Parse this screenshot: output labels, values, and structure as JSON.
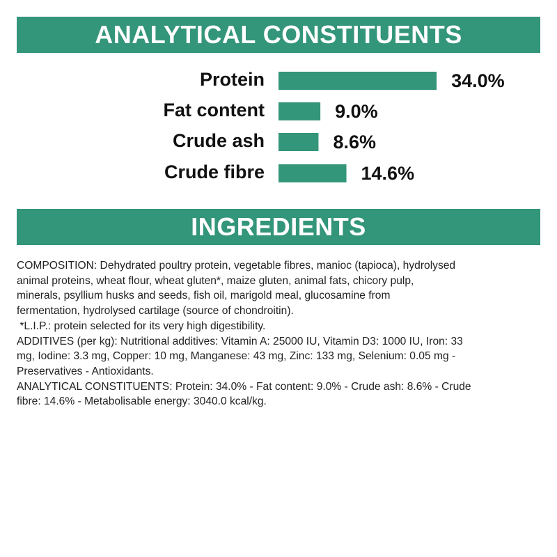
{
  "headers": {
    "constituents": "ANALYTICAL CONSTITUENTS",
    "ingredients": "INGREDIENTS"
  },
  "chart_data": {
    "type": "bar",
    "orientation": "horizontal",
    "color": "#33957a",
    "categories": [
      "Protein",
      "Fat content",
      "Crude ash",
      "Crude fibre"
    ],
    "values": [
      34.0,
      9.0,
      8.6,
      14.6
    ],
    "value_labels": [
      "34.0%",
      "9.0%",
      "8.6%",
      "14.6%"
    ]
  },
  "ingredients": {
    "lines": [
      "COMPOSITION: Dehydrated poultry protein, vegetable fibres, manioc (tapioca), hydrolysed",
      "animal proteins, wheat flour, wheat gluten*, maize gluten, animal fats, chicory pulp,",
      "minerals, psyllium husks and seeds, fish oil, marigold meal, glucosamine from",
      "fermentation, hydrolysed cartilage (source of chondroitin).",
      " *L.I.P.: protein selected for its very high digestibility.",
      "ADDITIVES (per kg): Nutritional additives: Vitamin A: 25000 IU, Vitamin D3: 1000 IU, Iron: 33",
      "mg, Iodine: 3.3 mg, Copper: 10 mg, Manganese: 43 mg, Zinc: 133 mg, Selenium: 0.05 mg -",
      "Preservatives - Antioxidants.",
      "ANALYTICAL CONSTITUENTS: Protein: 34.0% - Fat content: 9.0% - Crude ash: 8.6% - Crude",
      "fibre: 14.6% - Metabolisable energy: 3040.0 kcal/kg."
    ]
  }
}
